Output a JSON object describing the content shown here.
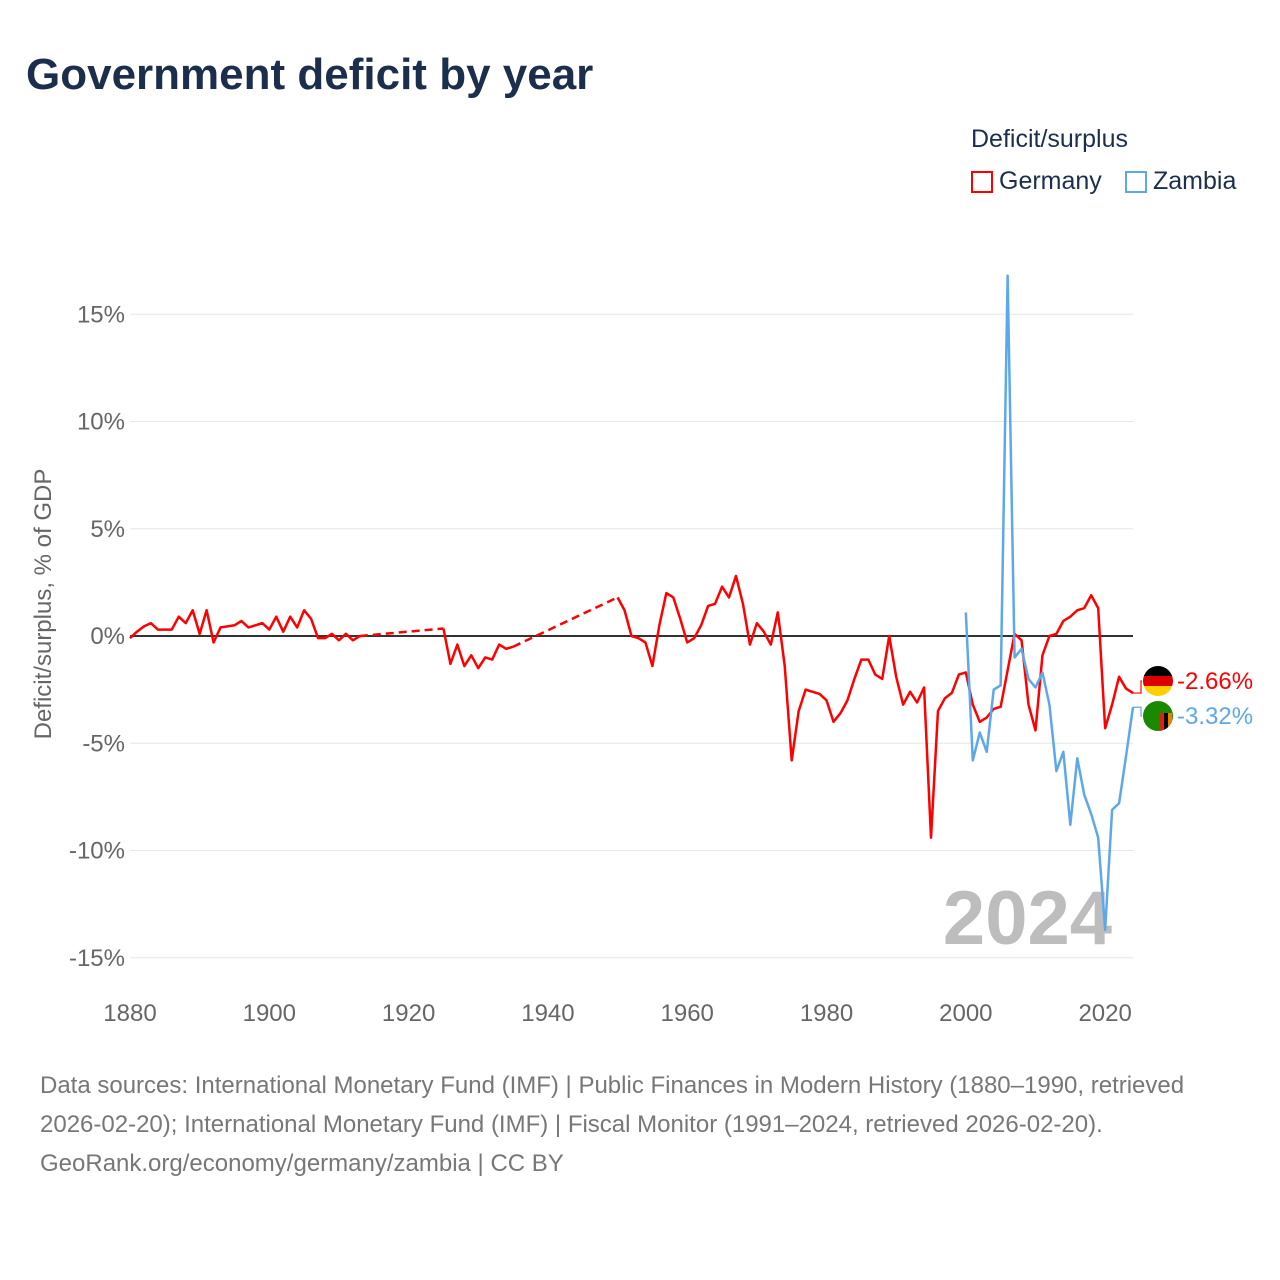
{
  "title": "Government deficit by year",
  "legend": {
    "title": "Deficit/surplus",
    "items": [
      {
        "label": "Germany",
        "color": "#ff0000"
      },
      {
        "label": "Zambia",
        "color": "#5ea8ea"
      }
    ]
  },
  "chart_data": {
    "type": "line",
    "title": "Government deficit by year",
    "xlabel": "",
    "ylabel": "Deficit/surplus, % of GDP",
    "xlim": [
      1880,
      2024
    ],
    "ylim": [
      -15,
      17
    ],
    "x_ticks": [
      1880,
      1900,
      1920,
      1940,
      1960,
      1980,
      2000,
      2020
    ],
    "x_tick_labels": [
      "1880",
      "1900",
      "1920",
      "1940",
      "1960",
      "1980",
      "2000",
      "2020"
    ],
    "y_ticks": [
      15,
      10,
      5,
      0,
      -5,
      -10,
      -15
    ],
    "y_tick_labels": [
      "15%",
      "10%",
      "5%",
      "0%",
      "-5%",
      "-10%",
      "-15%"
    ],
    "grid": true,
    "legend_position": "top-right",
    "current_year_label": "2024",
    "series": [
      {
        "name": "Germany",
        "color": "#ff0000",
        "end_label": "-2.66%",
        "segments": [
          {
            "x_start": 1880,
            "values": [
              -0.1,
              0.2,
              0.45,
              0.6,
              0.3,
              0.3,
              0.3,
              0.9,
              0.6,
              1.2,
              0.1,
              1.2,
              -0.3,
              0.4,
              0.45,
              0.5,
              0.7,
              0.4,
              0.5,
              0.6,
              0.3,
              0.9,
              0.2,
              0.9,
              0.4,
              1.2,
              0.8,
              -0.1,
              -0.1,
              0.1,
              -0.2,
              0.1,
              -0.2,
              0.0
            ]
          },
          {
            "x_start": 1925,
            "values": [
              0.35,
              -1.3,
              -0.4,
              -1.4,
              -0.9,
              -1.5,
              -1.0,
              -1.1,
              -0.4,
              -0.6,
              -0.5
            ]
          },
          {
            "x_start": 1950,
            "values": [
              1.8,
              1.2,
              0.0,
              -0.1,
              -0.3,
              -1.4,
              0.5,
              2.0,
              1.8,
              0.8,
              -0.3,
              -0.1,
              0.5,
              1.4,
              1.5,
              2.3,
              1.8,
              2.8,
              1.5,
              -0.4,
              0.6,
              0.2,
              -0.4,
              1.1,
              -1.4,
              -5.8,
              -3.5,
              -2.5,
              -2.6,
              -2.7,
              -3.0,
              -4.0,
              -3.6,
              -3.0,
              -2.0,
              -1.1,
              -1.1,
              -1.8,
              -2.0,
              0.0,
              -1.9,
              -3.2,
              -2.6,
              -3.1,
              -2.4,
              -9.4,
              -3.5,
              -2.9,
              -2.65,
              -1.8,
              -1.7,
              -3.2,
              -4.0,
              -3.8,
              -3.4,
              -3.3,
              -1.6,
              0.1,
              -0.2,
              -3.2,
              -4.4,
              -0.9,
              0.0,
              0.1,
              0.7,
              0.9,
              1.2,
              1.3,
              1.9,
              1.3,
              -4.3,
              -3.2,
              -1.9,
              -2.45,
              -2.66
            ]
          }
        ]
      },
      {
        "name": "Zambia",
        "color": "#5ea8ea",
        "end_label": "-3.32%",
        "segments": [
          {
            "x_start": 2000,
            "values": [
              1.1,
              -5.8,
              -4.5,
              -5.4,
              -2.5,
              -2.3,
              16.8,
              -1.0,
              -0.6,
              -2.0,
              -2.4,
              -1.7,
              -3.2,
              -6.3,
              -5.4,
              -8.8,
              -5.7,
              -7.4,
              -8.3,
              -9.4,
              -13.7,
              -8.1,
              -7.8,
              -5.6,
              -3.32
            ]
          }
        ]
      }
    ]
  },
  "footer": {
    "sources": "Data sources: International Monetary Fund (IMF) | Public Finances in Modern History (1880–1990, retrieved 2026-02-20); International Monetary Fund (IMF) | Fiscal Monitor (1991–2024, retrieved 2026-02-20).",
    "credit": "GeoRank.org/economy/germany/zambia | CC BY"
  }
}
